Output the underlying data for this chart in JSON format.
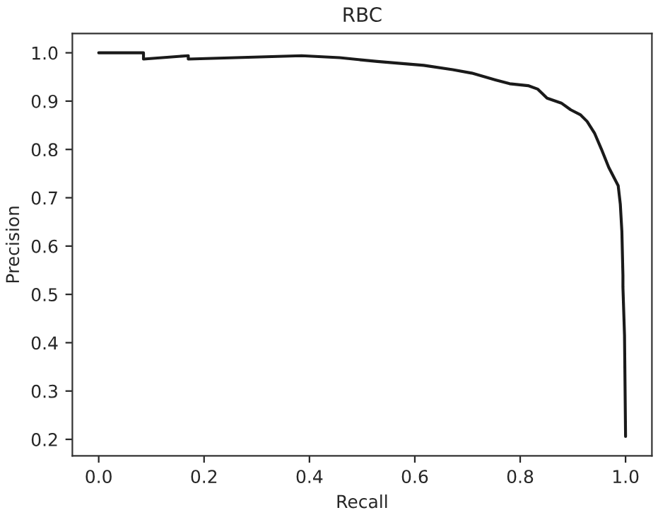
{
  "chart_data": {
    "type": "line",
    "title": "RBC",
    "xlabel": "Recall",
    "ylabel": "Precision",
    "series": [
      {
        "color": "#1a1a1a",
        "x": [
          0,
          0.085,
          0.085,
          0.17,
          0.17,
          0.385,
          0.457,
          0.529,
          0.617,
          0.672,
          0.708,
          0.753,
          0.78,
          0.815,
          0.833,
          0.851,
          0.878,
          0.896,
          0.914,
          0.927,
          0.941,
          0.954,
          0.968,
          0.977,
          0.986,
          0.99,
          0.993,
          0.995,
          0.995,
          0.998,
          1.0
        ],
        "values": [
          1.0,
          1.0,
          0.987,
          0.994,
          0.987,
          0.994,
          0.99,
          0.982,
          0.974,
          0.965,
          0.958,
          0.944,
          0.936,
          0.932,
          0.925,
          0.906,
          0.896,
          0.882,
          0.872,
          0.858,
          0.834,
          0.801,
          0.763,
          0.744,
          0.725,
          0.687,
          0.63,
          0.539,
          0.515,
          0.415,
          0.206
        ]
      }
    ],
    "xlim": [
      -0.05,
      1.05
    ],
    "ylim": [
      0.166,
      1.04
    ],
    "xticks": [
      {
        "value": 0,
        "label": "0.0"
      },
      0.2,
      0.4,
      0.6,
      0.8,
      {
        "value": 1,
        "label": "1.0"
      }
    ],
    "yticks": [
      0.2,
      0.3,
      0.4,
      0.5,
      0.6,
      0.7,
      0.8,
      0.9,
      {
        "value": 1,
        "label": "1.0"
      }
    ],
    "grid": false,
    "marker": "none",
    "line_style": "solid"
  }
}
